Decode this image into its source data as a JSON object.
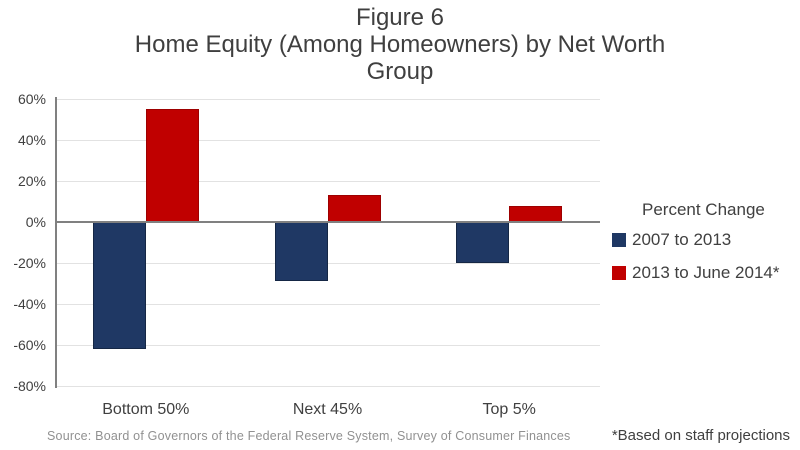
{
  "title": {
    "line1": "Figure 6",
    "line2": "Home Equity (Among Homeowners) by Net Worth",
    "line3": "Group"
  },
  "chart_data": {
    "type": "bar",
    "categories": [
      "Bottom 50%",
      "Next 45%",
      "Top 5%"
    ],
    "series": [
      {
        "name": "2007 to 2013",
        "color": "#1F3864",
        "values": [
          -62,
          -29,
          -20
        ]
      },
      {
        "name": "2013 to June 2014*",
        "color": "#C00000",
        "values": [
          55,
          13,
          8
        ]
      }
    ],
    "title": "Figure 6 Home Equity (Among Homeowners) by Net Worth Group",
    "xlabel": "",
    "ylabel": "",
    "ylim": [
      -80,
      60
    ],
    "ytick_step": 20,
    "ytick_labels": [
      "60%",
      "40%",
      "20%",
      "0%",
      "-20%",
      "-40%",
      "-60%",
      "-80%"
    ],
    "grid": true,
    "legend_title": "Percent Change",
    "legend_position": "right"
  },
  "legend": {
    "title": "Percent Change",
    "items": [
      {
        "label": "2007 to 2013",
        "color": "#1F3864"
      },
      {
        "label": "2013 to June 2014*",
        "color": "#C00000"
      }
    ]
  },
  "footer": {
    "source": "Source: Board of Governors of the Federal Reserve System, Survey of Consumer Finances",
    "footnote": "*Based on staff projections"
  },
  "colors": {
    "series_navy": "#1F3864",
    "series_red": "#C00000",
    "axis_line": "#808080",
    "gridline": "#E2E2E2",
    "title_text": "#3F3F3F",
    "label_text": "#404040",
    "source_text": "#919191"
  }
}
